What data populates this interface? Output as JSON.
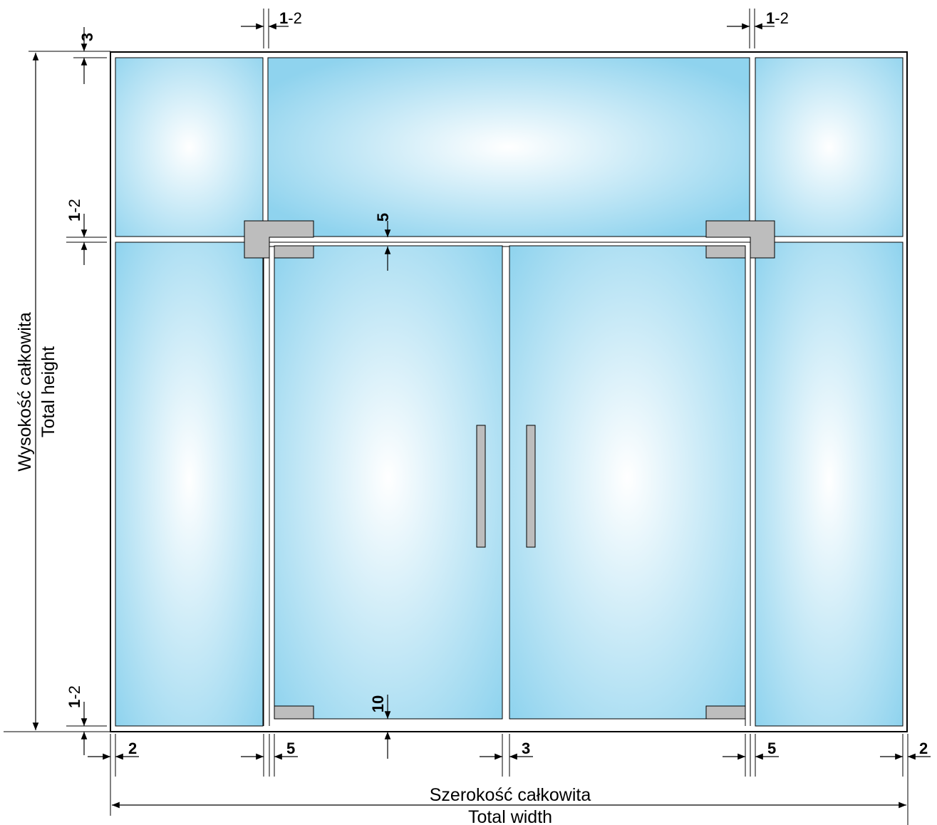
{
  "labels": {
    "width_pl": "Szerokość całkowita",
    "width_en": "Total width",
    "height_pl": "Wysokość całkowita",
    "height_en": "Total height"
  },
  "dimensions": {
    "top_gap_left_bold": "1",
    "top_gap_left_rest": "-2",
    "top_gap_right_bold": "1",
    "top_gap_right_rest": "-2",
    "top_margin": "3",
    "transom_gap_bold": "1",
    "transom_gap_rest": "-2",
    "door_top_gap": "5",
    "door_bottom_gap": "10",
    "bottom_gap_bold": "1",
    "bottom_gap_rest": "-2",
    "left_margin": "2",
    "left_door_gap": "5",
    "center_gap": "3",
    "right_door_gap": "5",
    "right_margin": "2"
  },
  "colors": {
    "glass_edge": "#8fd3ee",
    "glass_center": "#ffffff",
    "fitting": "#bdbdbd",
    "frame": "#000000"
  }
}
